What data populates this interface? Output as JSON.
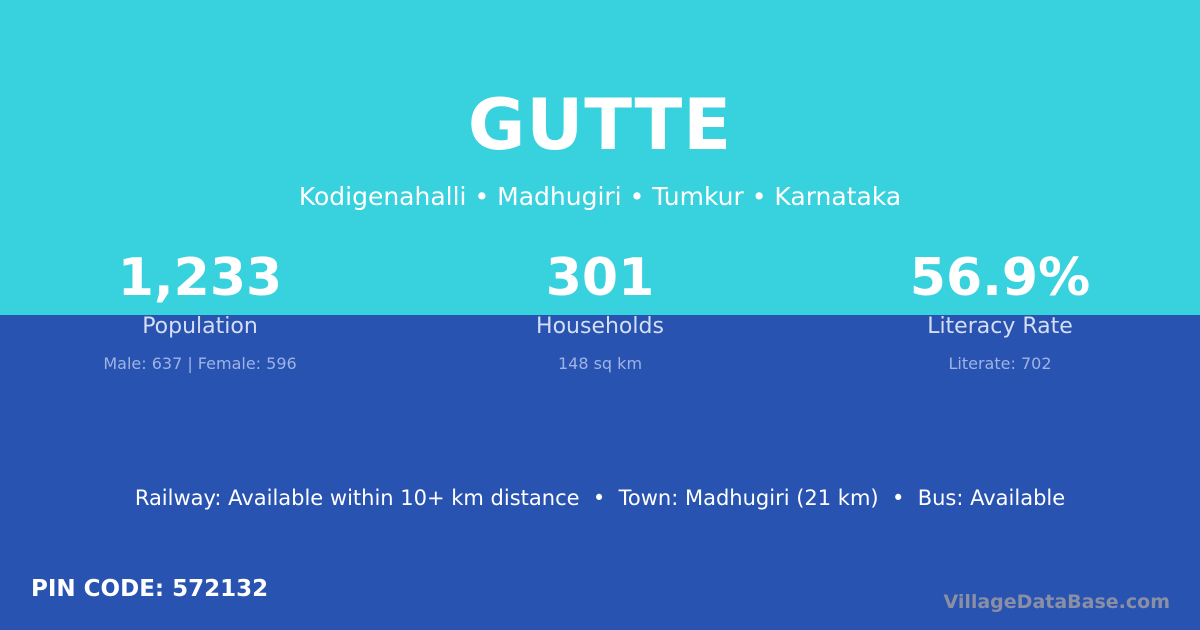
{
  "village": {
    "name": "GUTTE",
    "location": "Kodigenahalli • Madhugiri • Tumkur • Karnataka"
  },
  "stats": [
    {
      "value": "1,233",
      "label": "Population",
      "sub": "Male: 637 | Female: 596"
    },
    {
      "value": "301",
      "label": "Households",
      "sub": "148 sq km"
    },
    {
      "value": "56.9%",
      "label": "Literacy Rate",
      "sub": "Literate: 702"
    }
  ],
  "transport": "Railway: Available within 10+ km distance  •  Town: Madhugiri (21 km)  •  Bus: Available",
  "pin_code": "PIN CODE: 572132",
  "brand": "VillageDataBase.com",
  "colors": {
    "top": "#38d1de",
    "bottom": "#2853b0"
  }
}
